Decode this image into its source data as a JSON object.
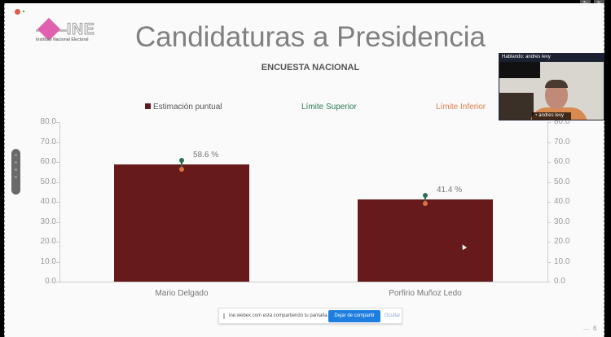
{
  "slide": {
    "title": "Candidaturas a Presidencia",
    "subtitle": "ENCUESTA NACIONAL",
    "page_number": "6",
    "logo": {
      "text": "INE",
      "subtext": "Instituto Nacional Electoral"
    }
  },
  "legend": {
    "estimate": "Estimación puntual",
    "upper": "Límite Superior",
    "lower": "Límite Inferior"
  },
  "colors": {
    "bar": "#661a1c",
    "upper": "#2f6b55",
    "lower": "#e07040",
    "share_button": "#1e7ee0"
  },
  "chart_data": {
    "type": "bar",
    "title": "ENCUESTA NACIONAL",
    "categories": [
      "Mario Delgado",
      "Porfirio Muñoz Ledo"
    ],
    "series": [
      {
        "name": "Estimación puntual",
        "values": [
          58.6,
          41.4
        ]
      },
      {
        "name": "Límite Superior",
        "values": [
          60.7,
          43.3
        ]
      },
      {
        "name": "Límite Inferior",
        "values": [
          56.5,
          39.3
        ]
      }
    ],
    "data_labels": [
      "58.6 %",
      "41.4 %"
    ],
    "y_ticks": [
      "0.0",
      "10.0",
      "20.0",
      "30.0",
      "40.0",
      "50.0",
      "60.0",
      "70.0",
      "80.0"
    ],
    "ylim": [
      0,
      80
    ],
    "secondary_y_axis": true,
    "legend_position": "top",
    "grid": false,
    "xlabel": "",
    "ylabel": ""
  },
  "video": {
    "speaking_label": "Hablando: andres levy",
    "participant_name": "andres levy"
  },
  "share_bar": {
    "message": "ine.webex.com está compartiendo tu pantalla.",
    "stop_button": "Dejar de compartir",
    "hide_link": "Ocultar"
  },
  "toolbar": {
    "refresh_icon": "↻",
    "edit_icon": "✎"
  }
}
